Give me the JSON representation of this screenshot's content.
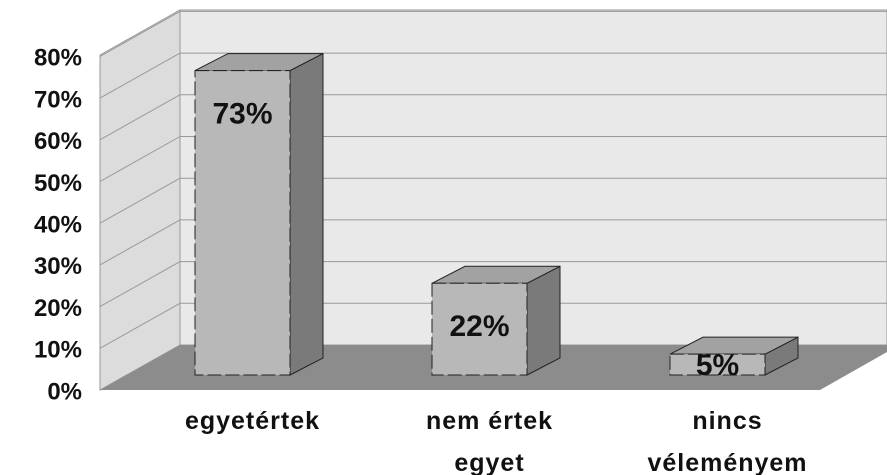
{
  "chart_data": {
    "type": "bar3d",
    "categories": [
      "egyetértek",
      "nem értek egyet",
      "nincs véleményem"
    ],
    "values": [
      73,
      22,
      5
    ],
    "value_labels": [
      "73%",
      "22%",
      "5%"
    ],
    "ylim": [
      0,
      80
    ],
    "yticks": [
      {
        "value": 0,
        "label": "0%"
      },
      {
        "value": 10,
        "label": "10%"
      },
      {
        "value": 20,
        "label": "20%"
      },
      {
        "value": 30,
        "label": "30%"
      },
      {
        "value": 40,
        "label": "40%"
      },
      {
        "value": 50,
        "label": "50%"
      },
      {
        "value": 60,
        "label": "60%"
      },
      {
        "value": 70,
        "label": "70%"
      },
      {
        "value": 80,
        "label": "80%"
      }
    ],
    "grid": true,
    "color": "#b8b8b8"
  }
}
